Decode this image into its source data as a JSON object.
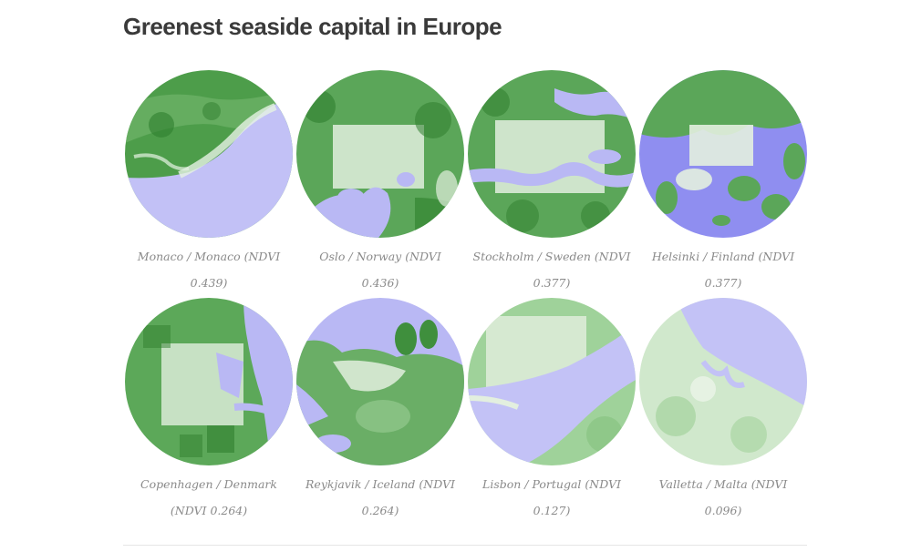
{
  "title": "Greenest seaside capital in Europe",
  "colors": {
    "vegetation_dark": "#3d8f3d",
    "vegetation_light": "#cfe6cc",
    "water": "#b9b8f4",
    "water_deep": "#8f8ef0"
  },
  "cities": [
    {
      "caption": "Monaco / Monaco (NDVI 0.439)",
      "ndvi": 0.439
    },
    {
      "caption": "Oslo / Norway (NDVI 0.436)",
      "ndvi": 0.436
    },
    {
      "caption": "Stockholm / Sweden (NDVI 0.377)",
      "ndvi": 0.377
    },
    {
      "caption": "Helsinki / Finland (NDVI 0.377)",
      "ndvi": 0.377
    },
    {
      "caption": "Copenhagen / Denmark (NDVI 0.264)",
      "ndvi": 0.264
    },
    {
      "caption": "Reykjavik / Iceland (NDVI 0.264)",
      "ndvi": 0.264
    },
    {
      "caption": "Lisbon / Portugal (NDVI 0.127)",
      "ndvi": 0.127
    },
    {
      "caption": "Valletta / Malta (NDVI 0.096)",
      "ndvi": 0.096
    }
  ]
}
